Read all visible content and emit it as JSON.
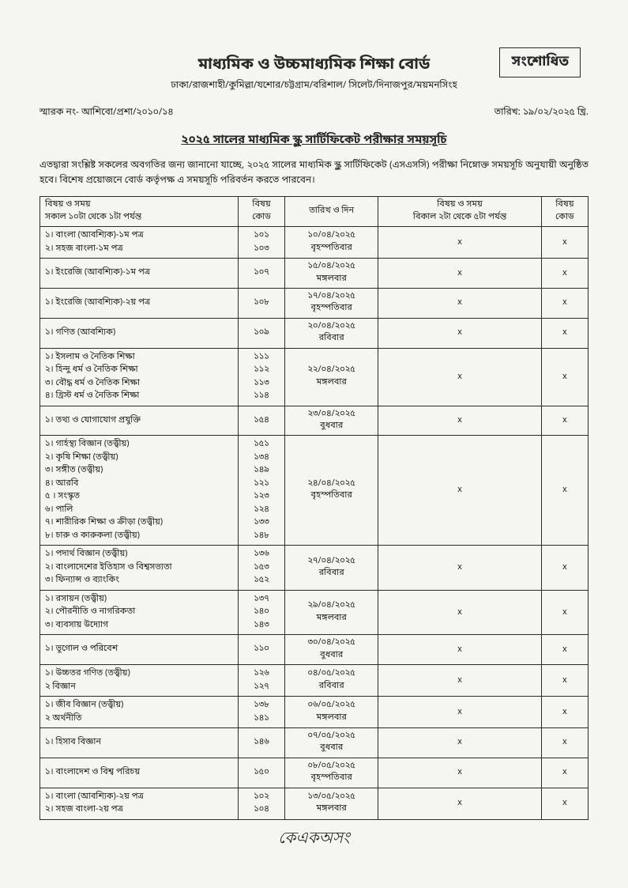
{
  "corrected": "সংশোধিত",
  "main_title": "মাধ্যমিক ও উচ্চমাধ্যমিক শিক্ষা বোর্ড",
  "sub_title": "ঢাকা/রাজশাহী/কুমিল্লা/যশোর/চট্টগ্রাম/বরিশাল/ সিলেট/দিনাজপুর/ময়মনসিংহ",
  "memo": "স্মারক নং- আশিবো/প্রশা/২০১০/১৪",
  "date_label": "তারিখ: ১৯/০২/২০২৫ খ্রি.",
  "schedule_title": "২০২৫ সালের মাধ্যমিক স্কুল সার্টিফিকেট পরীক্ষার সময়সূচি",
  "intro": "এতদ্বারা সংশ্লিষ্ট সকলের অবগতির জন্য জানানো যাচ্ছে, ২০২৫ সালের মাধ্যমিক স্কুল সার্টিফিকেট (এসএসসি) পরীক্ষা নিম্নোক্ত সময়সূচি অনুযায়ী অনুষ্ঠিত হবে। বিশেষ প্রয়োজনে বোর্ড কর্তৃপক্ষ এ সময়সূচি পরিবর্তন করতে পারবেন।",
  "headers": {
    "subj1": "বিষয় ও সময়\nসকাল ১০টা থেকে ১টা পর্যন্ত",
    "code1": "বিষয়\nকোড",
    "date": "তারিখ ও দিন",
    "subj2": "বিষয় ও সময়\nবিকাল ২টা থেকে ৫টা পর্যন্ত",
    "code2": "বিষয়\nকোড"
  },
  "rows": [
    {
      "subjects": "১। বাংলা (আবশ্যিক)-১ম পত্র\n২। সহজ বাংলা-১ম পত্র",
      "codes": "১০১\n১০৩",
      "date": "১০/০৪/২০২৫\nবৃহস্পতিবার",
      "s2": "x",
      "c2": "x"
    },
    {
      "subjects": "১। ইংরেজি (আবশ্যিক)-১ম পত্র",
      "codes": "১০৭",
      "date": "১৫/০৪/২০২৫\nমঙ্গলবার",
      "s2": "x",
      "c2": "x"
    },
    {
      "subjects": "১। ইংরেজি (আবশ্যিক)-২য় পত্র",
      "codes": "১০৮",
      "date": "১৭/০৪/২০২৫\nবৃহস্পতিবার",
      "s2": "x",
      "c2": "x"
    },
    {
      "subjects": "১। গণিত (আবশ্যিক)",
      "codes": "১০৯",
      "date": "২০/০৪/২০২৫\nরবিবার",
      "s2": "x",
      "c2": "x"
    },
    {
      "subjects": "১। ইসলাম ও নৈতিক শিক্ষা\n২। হিন্দু ধর্ম ও নৈতিক শিক্ষা\n৩। বৌদ্ধ ধর্ম ও নৈতিক শিক্ষা\n৪। খ্রিস্ট ধর্ম ও নৈতিক শিক্ষা",
      "codes": "১১১\n১১২\n১১৩\n১১৪",
      "date": "২২/০৪/২০২৫\nমঙ্গলবার",
      "s2": "x",
      "c2": "x"
    },
    {
      "subjects": "১। তথ্য ও যোগাযোগ প্রযুক্তি",
      "codes": "১৫৪",
      "date": "২৩/০৪/২০২৫\nবুধবার",
      "s2": "x",
      "c2": "x"
    },
    {
      "subjects": "১। গার্হস্থ্য বিজ্ঞান (তত্ত্বীয়)\n২। কৃষি শিক্ষা (তত্ত্বীয়)\n৩। সঙ্গীত (তত্ত্বীয়)\n৪। আরবি\n৫  । সংস্কৃত\n৬। পালি\n৭। শারীরিক শিক্ষা ও ক্রীড়া (তত্ত্বীয়)\n৮। চারু ও কারুকলা (তত্ত্বীয়)",
      "codes": "১৫১\n১৩৪\n১৪৯\n১২১\n১২৩\n১২৪\n১৩৩\n১৪৮",
      "date": "২৪/০৪/২০২৫\nবৃহস্পতিবার",
      "s2": "x",
      "c2": "x"
    },
    {
      "subjects": "১। পদার্থ বিজ্ঞান (তত্ত্বীয়)\n২। বাংলাদেশের ইতিহাস ও বিশ্বসভ্যতা\n৩। ফিন্যান্স ও ব্যাংকিং",
      "codes": "১৩৬\n১৫৩\n১৫২",
      "date": "২৭/০৪/২০২৫\nরবিবার",
      "s2": "x",
      "c2": "x"
    },
    {
      "subjects": "১। রসায়ন (তত্ত্বীয়)\n২। পৌরনীতি ও নাগরিকতা\n৩। ব্যবসায় উদ্যোগ",
      "codes": "১৩৭\n১৪০\n১৪৩",
      "date": "২৯/০৪/২০২৫\nমঙ্গলবার",
      "s2": "x",
      "c2": "x"
    },
    {
      "subjects": "১। ভূগোল ও পরিবেশ",
      "codes": "১১০",
      "date": "৩০/০৪/২০২৫\nবুধবার",
      "s2": "x",
      "c2": "x"
    },
    {
      "subjects": "১। উচ্চতর গণিত (তত্ত্বীয়)\n২  বিজ্ঞান",
      "codes": "১২৬\n১২৭",
      "date": "০৪/০৫/২০২৫\nরবিবার",
      "s2": "x",
      "c2": "x"
    },
    {
      "subjects": "১। জীব বিজ্ঞান (তত্ত্বীয়)\n২  অর্থনীতি",
      "codes": "১৩৮\n১৪১",
      "date": "০৬/০৫/২০২৫\nমঙ্গলবার",
      "s2": "x",
      "c2": "x"
    },
    {
      "subjects": "১। হিসাব বিজ্ঞান",
      "codes": "১৪৬",
      "date": "০৭/০৫/২০২৫\nবুধবার",
      "s2": "x",
      "c2": "x"
    },
    {
      "subjects": "১। বাংলাদেশ ও বিশ্ব পরিচয়",
      "codes": "১৫০",
      "date": "০৮/০৫/২০২৫\nবৃহস্পতিবার",
      "s2": "x",
      "c2": "x"
    },
    {
      "subjects": "১। বাংলা (আবশ্যিক)-২য় পত্র\n২। সহজ বাংলা-২য় পত্র",
      "codes": "১০২\n১০৪",
      "date": "১৩/০৫/২০২৫\nমঙ্গলবার",
      "s2": "x",
      "c2": "x"
    }
  ],
  "signature": "কেএকঅসং"
}
